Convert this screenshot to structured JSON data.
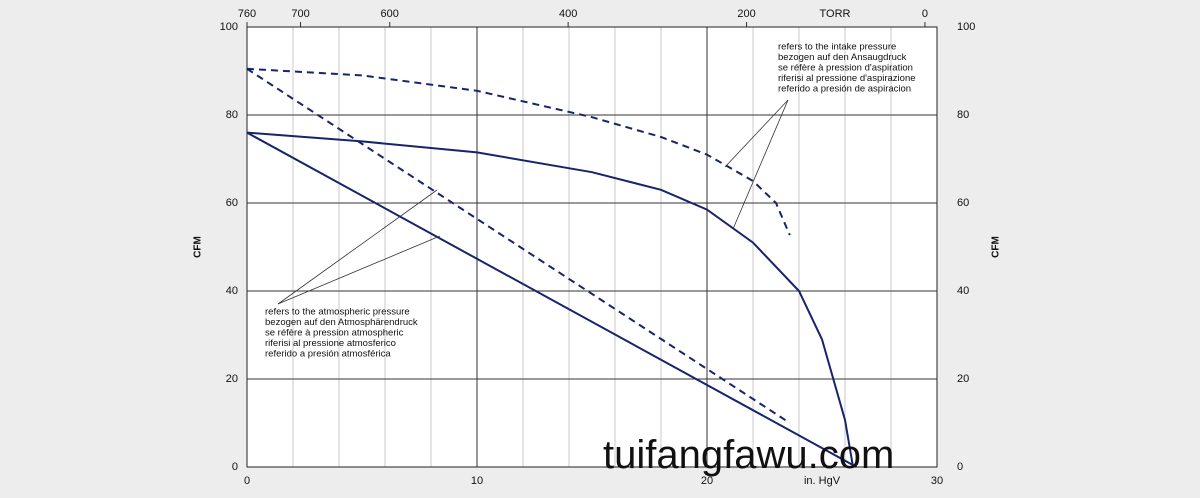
{
  "chart_data": {
    "type": "line",
    "ylabel": "CFM",
    "xlabel": "in. HgV",
    "x2label": "TORR",
    "xlim": [
      0,
      30
    ],
    "xticks": [
      0,
      10,
      20,
      30
    ],
    "xminor": [
      2,
      4,
      6,
      8,
      12,
      14,
      16,
      18,
      22,
      24,
      26,
      28
    ],
    "x2lim": [
      760,
      -13.5
    ],
    "x2ticks": [
      760,
      700,
      600,
      400,
      200,
      0
    ],
    "ylim": [
      0,
      100
    ],
    "yticks": [
      0,
      20,
      40,
      60,
      80,
      100
    ],
    "y2lim": [
      0,
      100
    ],
    "y2ticks": [
      0,
      20,
      40,
      60,
      80,
      100
    ],
    "grid": true,
    "series": [
      {
        "color": "#16246b",
        "dashed": false,
        "x": [
          0,
          5,
          10,
          15,
          18,
          20,
          22,
          24,
          25,
          26,
          26.35
        ],
        "values": [
          76,
          74,
          71.5,
          67,
          63,
          58.5,
          51,
          40,
          29,
          10.7,
          0
        ]
      },
      {
        "color": "#16246b",
        "dashed": true,
        "x": [
          0,
          5,
          10,
          15,
          18,
          20,
          22,
          23,
          23.6
        ],
        "values": [
          90.5,
          89,
          85.5,
          79.5,
          75,
          71,
          65,
          60,
          52.7
        ]
      },
      {
        "color": "#16246b",
        "dashed": false,
        "x": [
          0,
          26.5
        ],
        "values": [
          76,
          0
        ]
      },
      {
        "color": "#16246b",
        "dashed": true,
        "x": [
          0,
          23.6
        ],
        "values": [
          90.5,
          10
        ]
      }
    ],
    "annotations": [
      {
        "lines": [
          "refers to the intake pressure",
          "bezogen auf den Ansaugdruck",
          "se réfère à pression d'aspiration",
          "riferisi al pressione d'aspirazione",
          "referido a presión de aspiracion"
        ]
      },
      {
        "lines": [
          "refers to the atmospheric pressure",
          "bezogen auf den Atmosphärendruck",
          "se réfère à pression atmospheric",
          "riferisi al pressione atmosferico",
          "referido a presión atmosférica"
        ]
      }
    ],
    "watermark": "tuifangfawu.com"
  }
}
